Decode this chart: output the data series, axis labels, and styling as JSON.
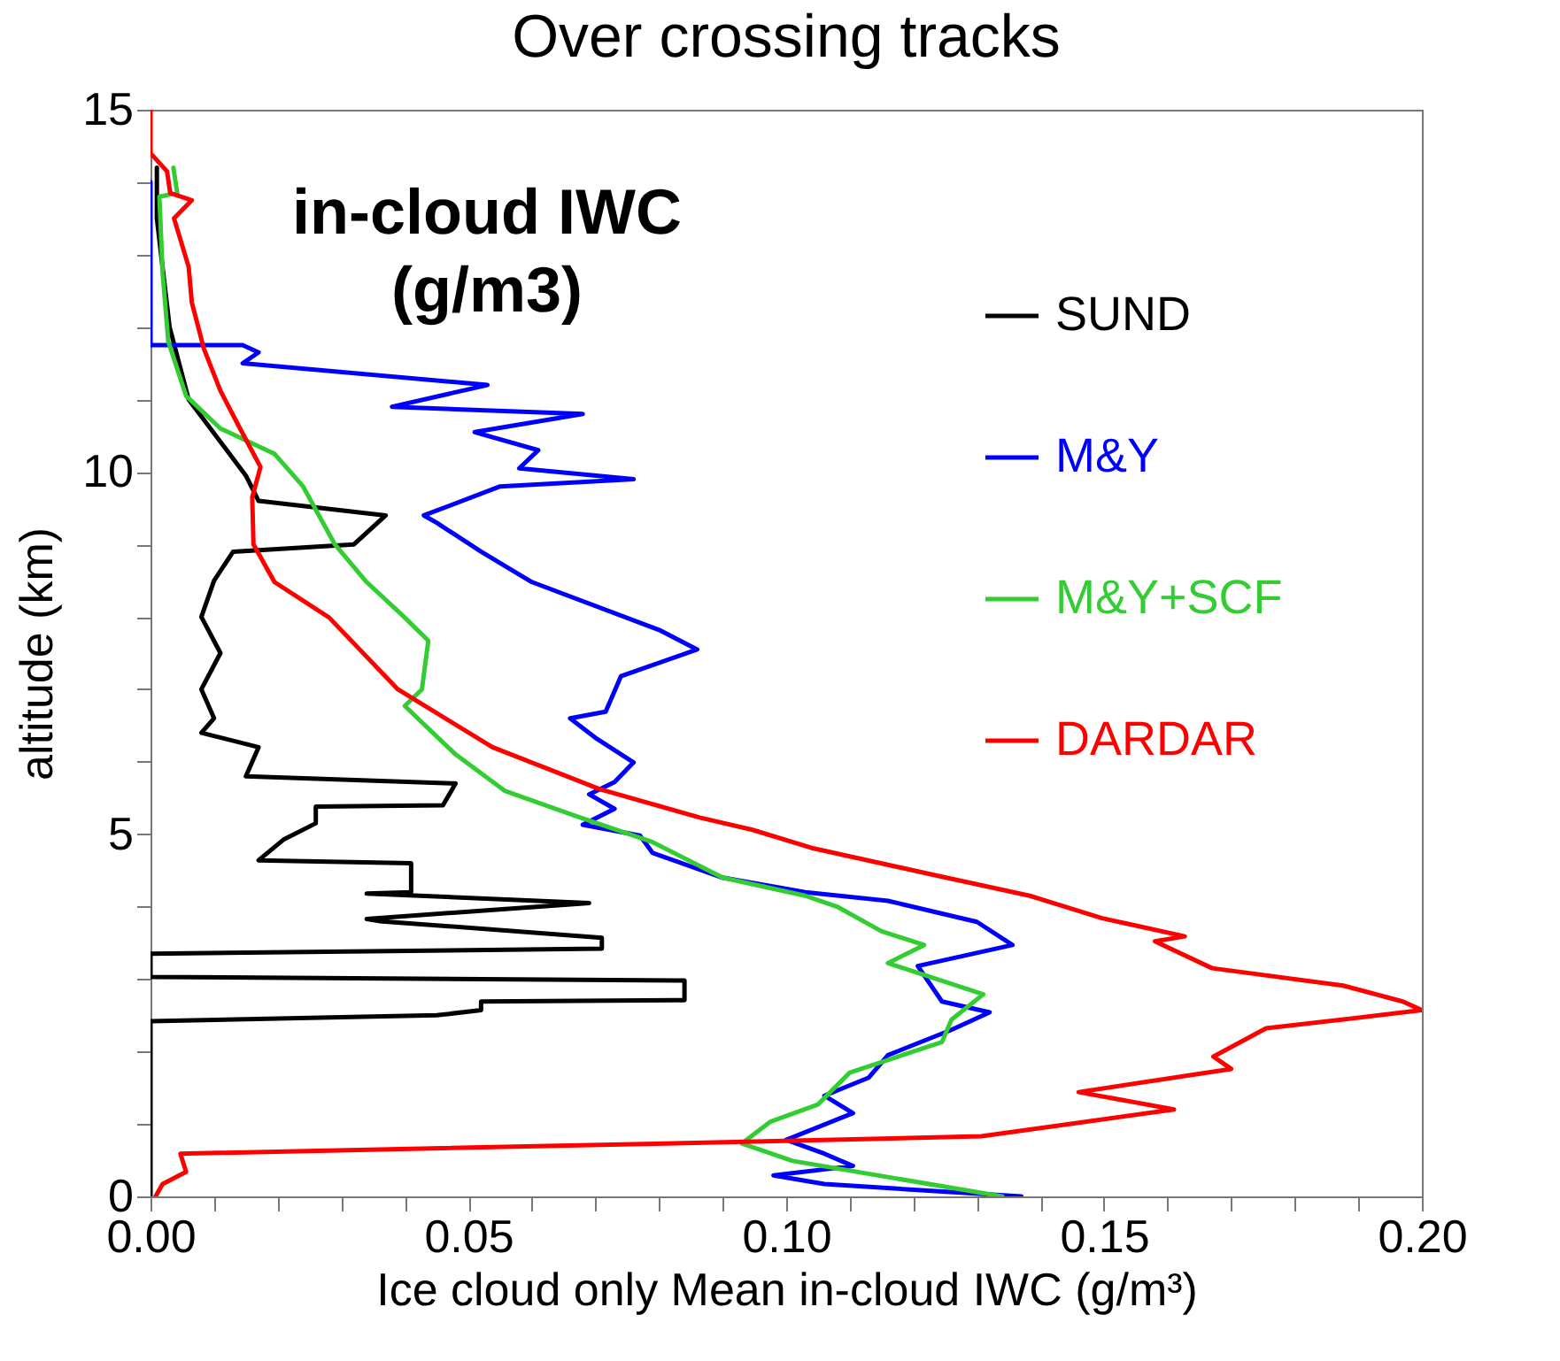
{
  "chart_data": {
    "type": "line",
    "title": "Over crossing tracks",
    "xlabel": "Ice cloud only Mean in-cloud IWC (g/m³)",
    "ylabel": "altitude (km)",
    "annotations": [
      "in-cloud IWC\n(g/m3)"
    ],
    "xlim": [
      0,
      0.2
    ],
    "ylim": [
      0,
      15
    ],
    "xticks": [
      {
        "value": 0,
        "label": "0.00"
      },
      {
        "value": 0.01,
        "label": null
      },
      {
        "value": 0.02,
        "label": null
      },
      {
        "value": 0.03,
        "label": null
      },
      {
        "value": 0.04,
        "label": null
      },
      {
        "value": 0.05,
        "label": "0.05"
      },
      {
        "value": 0.06,
        "label": null
      },
      {
        "value": 0.07,
        "label": null
      },
      {
        "value": 0.08,
        "label": null
      },
      {
        "value": 0.09,
        "label": null
      },
      {
        "value": 0.1,
        "label": "0.10"
      },
      {
        "value": 0.11,
        "label": null
      },
      {
        "value": 0.12,
        "label": null
      },
      {
        "value": 0.13,
        "label": null
      },
      {
        "value": 0.14,
        "label": null
      },
      {
        "value": 0.15,
        "label": "0.15"
      },
      {
        "value": 0.16,
        "label": null
      },
      {
        "value": 0.17,
        "label": null
      },
      {
        "value": 0.18,
        "label": null
      },
      {
        "value": 0.19,
        "label": null
      },
      {
        "value": 0.2,
        "label": "0.20"
      }
    ],
    "yticks": [
      0,
      {
        "value": 1,
        "label": null
      },
      {
        "value": 2,
        "label": null
      },
      {
        "value": 3,
        "label": null
      },
      {
        "value": 4,
        "label": null
      },
      5,
      {
        "value": 6,
        "label": null
      },
      {
        "value": 7,
        "label": null
      },
      {
        "value": 8,
        "label": null
      },
      {
        "value": 9,
        "label": null
      },
      10,
      {
        "value": 11,
        "label": null
      },
      {
        "value": 12,
        "label": null
      },
      {
        "value": 13,
        "label": null
      },
      {
        "value": 14,
        "label": null
      },
      15
    ],
    "grid": false,
    "legend": "right",
    "series": [
      {
        "name": "SUND",
        "color": "#000000",
        "x": [
          0.001,
          0.001,
          0.003,
          0.006,
          0.012,
          0.015,
          0.017,
          0.037,
          0.032,
          0.013,
          0.01,
          0.008,
          0.011,
          0.008,
          0.01,
          0.008,
          0.017,
          0.015,
          0.048,
          0.046,
          0.026,
          0.026,
          0.021,
          0.017,
          0.041,
          0.041,
          0.034,
          0.069,
          0.034,
          0.036,
          0.071,
          0.071,
          0,
          0,
          0.084,
          0.084,
          0.052,
          0.052,
          0.045,
          0,
          0
        ],
        "values": [
          14.2,
          13.5,
          12.0,
          11.0,
          10.3,
          9.95,
          9.6,
          9.4,
          9.0,
          8.9,
          8.5,
          8.0,
          7.5,
          7.0,
          6.6,
          6.4,
          6.2,
          5.8,
          5.7,
          5.4,
          5.38,
          5.15,
          4.93,
          4.64,
          4.6,
          4.2,
          4.18,
          4.05,
          3.83,
          3.8,
          3.57,
          3.42,
          3.35,
          3.03,
          2.98,
          2.71,
          2.69,
          2.57,
          2.5,
          2.42,
          0
        ]
      },
      {
        "name": "M&Y",
        "color": "#0000ff",
        "x": [
          0,
          0,
          0.0145,
          0.017,
          0.0145,
          0.053,
          0.038,
          0.068,
          0.051,
          0.061,
          0.058,
          0.076,
          0.055,
          0.043,
          0.045,
          0.052,
          0.06,
          0.08,
          0.086,
          0.074,
          0.0716,
          0.066,
          0.07,
          0.076,
          0.073,
          0.069,
          0.073,
          0.068,
          0.077,
          0.079,
          0.09,
          0.103,
          0.116,
          0.13,
          0.1356,
          0.1207,
          0.1245,
          0.132,
          0.126,
          0.116,
          0.113,
          0.106,
          0.1105,
          0.1,
          0.106,
          0.1105,
          0.098,
          0.106,
          0.137
        ],
        "values": [
          14.0,
          11.75,
          11.75,
          11.65,
          11.5,
          11.2,
          10.9,
          10.8,
          10.55,
          10.3,
          10.05,
          9.9,
          9.8,
          9.4,
          9.3,
          8.9,
          8.48,
          7.82,
          7.55,
          7.18,
          6.69,
          6.6,
          6.33,
          5.99,
          5.72,
          5.55,
          5.35,
          5.13,
          4.98,
          4.74,
          4.4,
          4.2,
          4.08,
          3.79,
          3.47,
          3.18,
          2.69,
          2.54,
          2.3,
          1.95,
          1.64,
          1.39,
          1.15,
          0.78,
          0.59,
          0.42,
          0.29,
          0.17,
          0
        ]
      },
      {
        "name": "M&Y+SCF",
        "color": "#33cc33",
        "x": [
          0.0036,
          0.0042,
          0.0014,
          0.0019,
          0.0028,
          0.0056,
          0.011,
          0.0195,
          0.024,
          0.029,
          0.034,
          0.04,
          0.0437,
          0.0427,
          0.04,
          0.048,
          0.0557,
          0.0669,
          0.079,
          0.09,
          0.103,
          0.108,
          0.115,
          0.1217,
          0.116,
          0.131,
          0.126,
          0.1245,
          0.11,
          0.105,
          0.0975,
          0.093,
          0.101,
          0.134
        ],
        "values": [
          14.2,
          13.85,
          13.8,
          12.75,
          11.8,
          11.05,
          10.6,
          10.25,
          9.8,
          9.0,
          8.48,
          7.99,
          7.67,
          7.0,
          6.77,
          6.1,
          5.6,
          5.25,
          4.89,
          4.4,
          4.15,
          4.0,
          3.66,
          3.47,
          3.22,
          2.79,
          2.44,
          2.13,
          1.71,
          1.27,
          1.03,
          0.73,
          0.49,
          0
        ]
      },
      {
        "name": "DARDAR",
        "color": "#ff0000",
        "x": [
          0,
          0,
          0.0026,
          0.0031,
          0.0065,
          0.0037,
          0.006,
          0.0065,
          0.0084,
          0.011,
          0.0139,
          0.0173,
          0.016,
          0.0162,
          0.0195,
          0.0281,
          0.0389,
          0.0538,
          0.0707,
          0.0864,
          0.0947,
          0.104,
          0.1226,
          0.1383,
          0.1497,
          0.1627,
          0.158,
          0.167,
          0.1876,
          0.197,
          0.2,
          0.1755,
          0.1672,
          0.17,
          0.146,
          0.161,
          0.1307,
          0.0919,
          0.0047,
          0.0056,
          0.0019,
          0.0008
        ],
        "values": [
          15,
          14.4,
          14.15,
          13.85,
          13.75,
          13.5,
          12.83,
          12.34,
          11.7,
          11.12,
          10.63,
          10.07,
          9.65,
          9.0,
          8.48,
          7.99,
          7.0,
          6.2,
          5.62,
          5.23,
          5.06,
          4.81,
          4.45,
          4.15,
          3.84,
          3.59,
          3.52,
          3.15,
          2.91,
          2.69,
          2.57,
          2.32,
          1.93,
          1.76,
          1.44,
          1.2,
          0.83,
          0.75,
          0.59,
          0.34,
          0.17,
          0
        ]
      }
    ]
  }
}
